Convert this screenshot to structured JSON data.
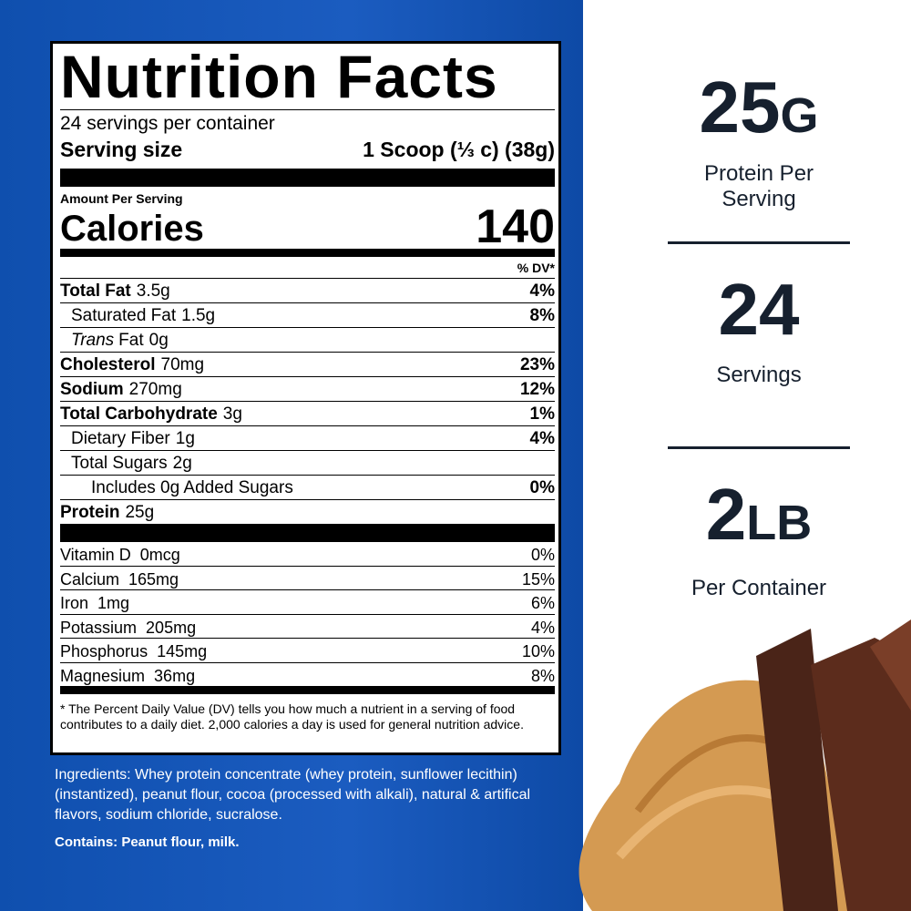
{
  "label": {
    "title": "Nutrition Facts",
    "servings": "24 servings per container",
    "serving_size_label": "Serving size",
    "serving_size_value": "1 Scoop (⅓ c) (38g)",
    "amount_per_serving": "Amount Per Serving",
    "calories_label": "Calories",
    "calories_value": "140",
    "dv_header": "% DV*",
    "nutrients": [
      {
        "name": "Total Fat",
        "amount": "3.5g",
        "dv": "4%"
      },
      {
        "name": "Saturated Fat",
        "amount": "1.5g",
        "dv": "8%"
      },
      {
        "name_italic": "Trans",
        "name": "Fat",
        "amount": "0g"
      },
      {
        "name": "Cholesterol",
        "amount": "70mg",
        "dv": "23%"
      },
      {
        "name": "Sodium",
        "amount": "270mg",
        "dv": "12%"
      },
      {
        "name": "Total Carbohydrate",
        "amount": "3g",
        "dv": "1%"
      },
      {
        "name": "Dietary Fiber",
        "amount": "1g",
        "dv": "4%"
      },
      {
        "name": "Total Sugars",
        "amount": "2g"
      },
      {
        "name": "Includes 0g Added Sugars",
        "dv": "0%"
      },
      {
        "name": "Protein",
        "amount": "25g"
      }
    ],
    "vitamins": [
      {
        "name": "Vitamin D",
        "amount": "0mcg",
        "dv": "0%"
      },
      {
        "name": "Calcium",
        "amount": "165mg",
        "dv": "15%"
      },
      {
        "name": "Iron",
        "amount": "1mg",
        "dv": "6%"
      },
      {
        "name": "Potassium",
        "amount": "205mg",
        "dv": "4%"
      },
      {
        "name": "Phosphorus",
        "amount": "145mg",
        "dv": "10%"
      },
      {
        "name": "Magnesium",
        "amount": "36mg",
        "dv": "8%"
      }
    ],
    "footnote": "* The Percent Daily Value (DV) tells you how much a nutrient in a serving of food contributes to a daily diet. 2,000 calories a day is used for general nutrition advice."
  },
  "ingredients": "Ingredients: Whey protein concentrate (whey protein, sunflower lecithin) (instantized), peanut flour, cocoa (processed with alkali), natural & artifical flavors, sodium chloride, sucralose.",
  "contains": "Contains: Peanut flour, milk.",
  "highlights": [
    {
      "value": "25",
      "unit": "G",
      "caption": "Protein Per Serving"
    },
    {
      "value": "24",
      "caption": "Servings"
    },
    {
      "value": "2",
      "unit": "LB",
      "caption": "Per Container"
    }
  ]
}
